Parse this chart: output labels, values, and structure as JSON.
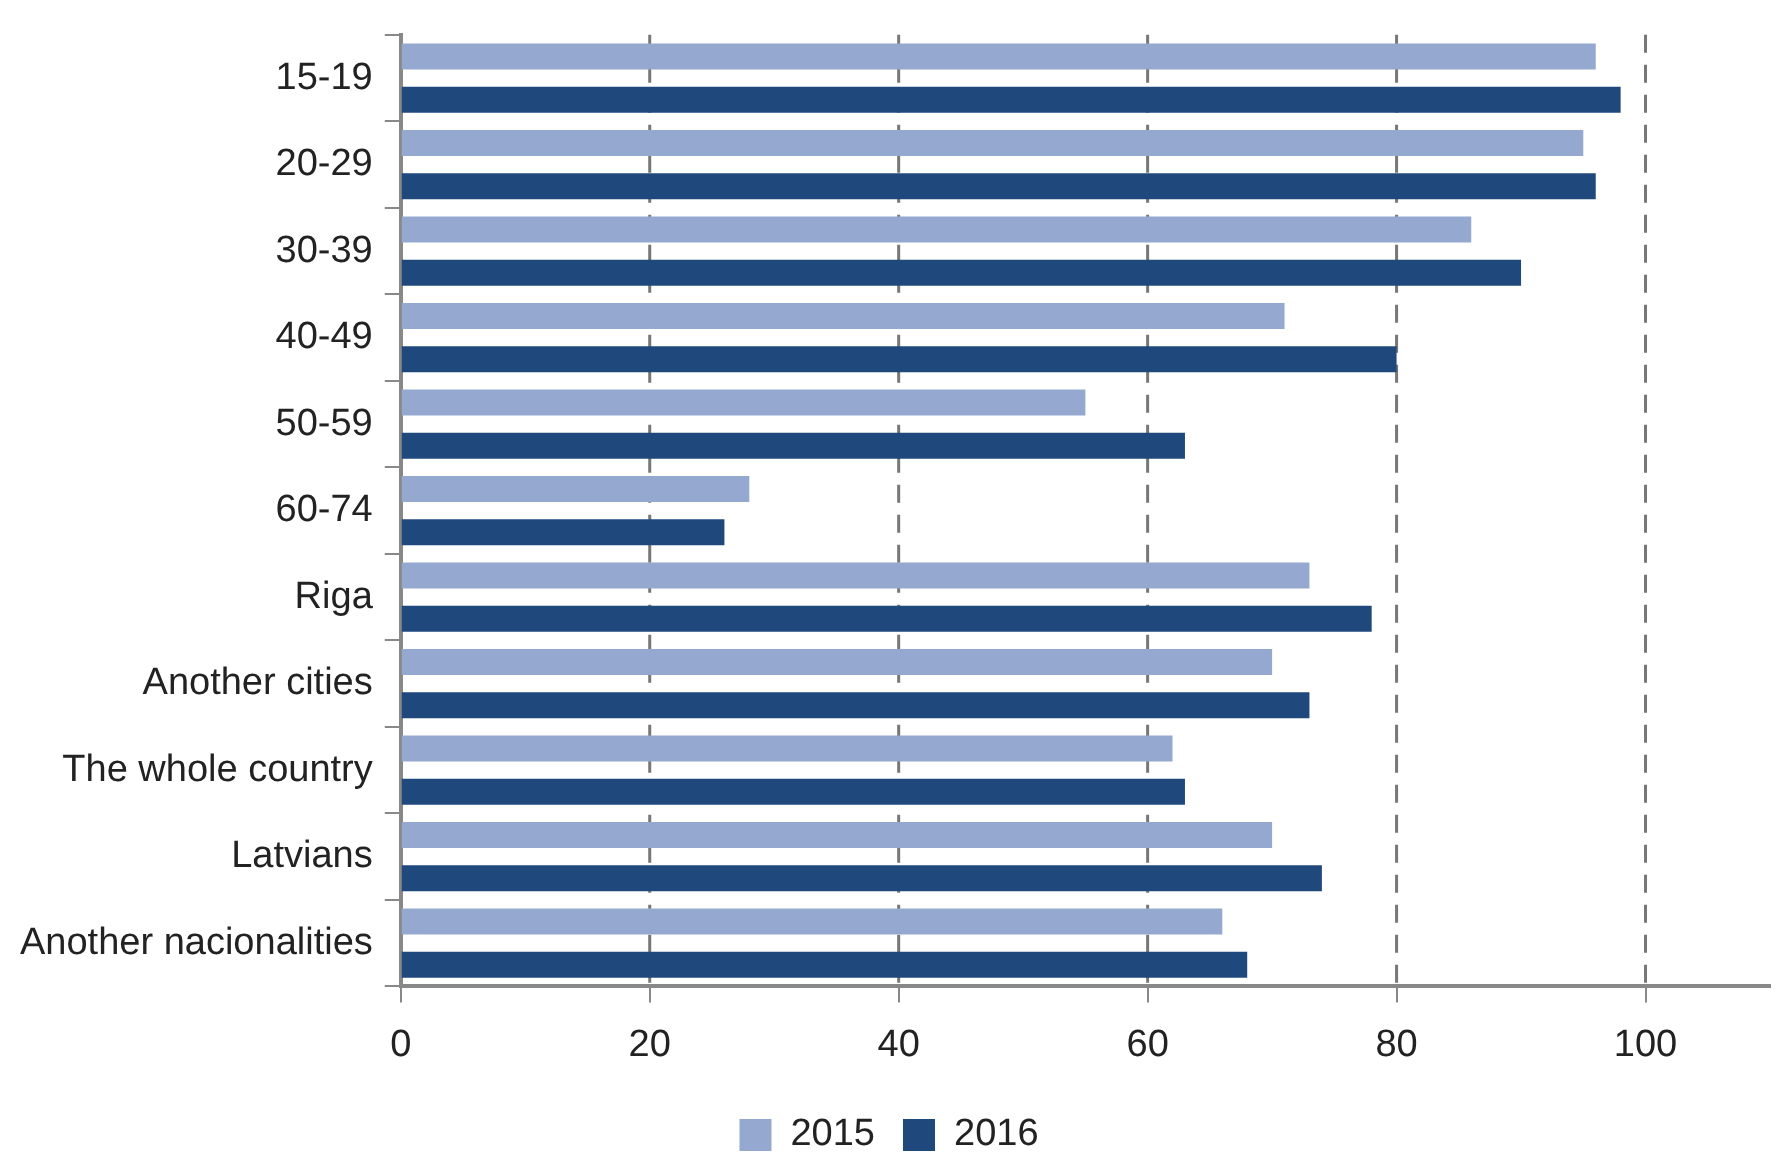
{
  "chart_data": {
    "type": "bar",
    "orientation": "horizontal",
    "categories": [
      "15-19",
      "20-29",
      "30-39",
      "40-49",
      "50-59",
      "60-74",
      "Riga",
      "Another cities",
      "The whole country",
      "Latvians",
      "Another nacionalities"
    ],
    "series": [
      {
        "name": "2015",
        "color": "#95a9d0",
        "values": [
          96,
          95,
          86,
          71,
          55,
          28,
          73,
          70,
          62,
          70,
          66
        ]
      },
      {
        "name": "2016",
        "color": "#1f497d",
        "values": [
          98,
          96,
          90,
          80,
          63,
          26,
          78,
          73,
          63,
          74,
          68
        ]
      }
    ],
    "xlim": [
      0,
      110
    ],
    "xticks": [
      0,
      20,
      40,
      60,
      80,
      100
    ],
    "grid": "x",
    "legend": "bottom"
  }
}
